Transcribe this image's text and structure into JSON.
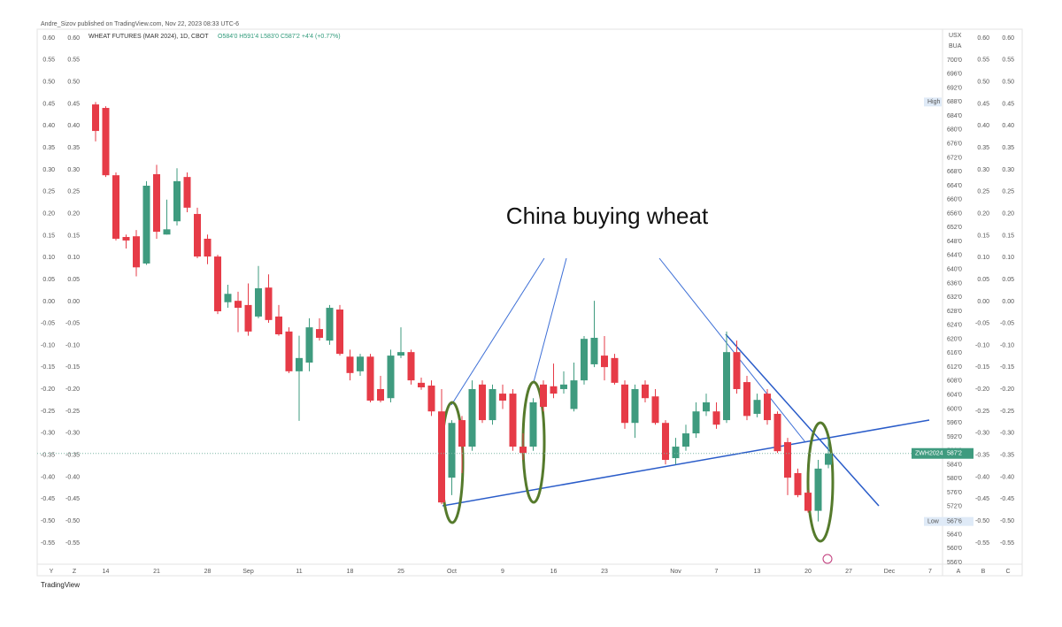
{
  "chart_data": {
    "type": "candlestick",
    "publisher": "Andre_Sizov published on TradingView.com, Nov 22, 2023 08:33 UTC-6",
    "title": "WHEAT FUTURES (MAR 2024), 1D, CBOT",
    "ohlc_text": "O584'0 H591'4 L583'0 C587'2 +4'4 (+0.77%)",
    "annotation": "China buying wheat",
    "currency": "USX",
    "unit": "BUA",
    "symbol": "ZWH2024",
    "last_price_label": "587'2",
    "high_label": "High",
    "low_label": "Low",
    "low_price_label": "567'6",
    "footer": "TradingView",
    "left_buttons": [
      "Y",
      "Z"
    ],
    "right_buttons": [
      "A",
      "B",
      "C"
    ],
    "up_color": "#3f9b7f",
    "down_color": "#e63b47",
    "categories": [
      null,
      "14",
      null,
      null,
      null,
      null,
      "21",
      null,
      null,
      null,
      null,
      "28",
      null,
      null,
      null,
      "Sep",
      null,
      null,
      null,
      null,
      "11",
      null,
      null,
      null,
      null,
      "18",
      null,
      null,
      null,
      null,
      "25",
      null,
      null,
      null,
      null,
      "Oct",
      null,
      null,
      null,
      null,
      "9",
      null,
      null,
      null,
      null,
      "16",
      null,
      null,
      null,
      null,
      "23",
      null,
      null,
      null,
      null,
      null,
      null,
      "Nov",
      null,
      null,
      null,
      "7",
      null,
      null,
      null,
      "13",
      null,
      null,
      null,
      null,
      "20",
      null,
      null,
      null,
      "27",
      null,
      null,
      null,
      "Dec",
      null,
      null,
      null,
      "7"
    ],
    "open": [
      687.3,
      686.3,
      667,
      649.3,
      649.5,
      641.7,
      667.3,
      650,
      653.8,
      666.5,
      655.9,
      648.8,
      643.7,
      630.6,
      631,
      629.8,
      626.5,
      634.8,
      626.5,
      622.2,
      610.8,
      613.3,
      622.9,
      619.6,
      628.5,
      615,
      610.8,
      615,
      605.7,
      603.1,
      615.3,
      616.3,
      607.5,
      606.7,
      599.3,
      580.3,
      596.8,
      589.2,
      607,
      596.8,
      604.4,
      604.4,
      589.2,
      589.2,
      607,
      606.5,
      605.7,
      600,
      608.2,
      612.8,
      615.3,
      614.6,
      607,
      596,
      607,
      603.6,
      596,
      585.9,
      589.2,
      593,
      599.3,
      599.3,
      596.8,
      616.3,
      607.7,
      598.6,
      604.4,
      598.6,
      590.5,
      581.6,
      576,
      570.8,
      584,
      null,
      null,
      null,
      null,
      null,
      null,
      null,
      null,
      null,
      null
    ],
    "high": [
      688,
      686.8,
      667.8,
      650,
      651.3,
      665.3,
      670,
      660,
      669,
      667.8,
      657.7,
      650,
      644.2,
      635.6,
      633.6,
      636,
      641,
      638.6,
      629.8,
      623.4,
      621,
      626,
      626,
      629.8,
      629.8,
      617,
      615.8,
      615.8,
      609.5,
      617,
      623.4,
      617,
      609,
      608.2,
      605.7,
      596.8,
      598,
      608.2,
      608.2,
      607,
      607,
      605.7,
      593,
      603.1,
      608.2,
      613,
      610.8,
      613.3,
      620.9,
      631,
      620.9,
      615.8,
      608.2,
      607,
      608.2,
      605.7,
      596.8,
      591.7,
      595.5,
      601.9,
      604.4,
      601.9,
      622.2,
      619.6,
      609.5,
      604.4,
      605.7,
      599.3,
      591.7,
      582.9,
      576.8,
      585.4,
      591.5,
      null,
      null,
      null,
      null,
      null,
      null,
      null,
      null,
      null,
      null
    ],
    "low": [
      676.7,
      666.5,
      648.3,
      646,
      638,
      641.3,
      648.8,
      650,
      652.6,
      656.4,
      643.2,
      641.5,
      627.2,
      629,
      622,
      621,
      626,
      624.7,
      621,
      610.3,
      596.6,
      610.8,
      619.6,
      618.4,
      615.3,
      608.2,
      609.5,
      601.9,
      601.9,
      601.9,
      614.6,
      607,
      605.5,
      598,
      572.7,
      575.3,
      581.6,
      588,
      596,
      595.5,
      600,
      588,
      585.4,
      588,
      599.3,
      603.1,
      604.4,
      599.3,
      607,
      612,
      608.2,
      607,
      594.3,
      591.7,
      601.9,
      595.5,
      584.1,
      584.1,
      588,
      591.7,
      598,
      594.3,
      596,
      604.4,
      596.8,
      597.6,
      595.5,
      587.4,
      575.3,
      574.7,
      570.3,
      567.75,
      583,
      null,
      null,
      null,
      null,
      null,
      null,
      null,
      null,
      null,
      null
    ],
    "close": [
      679.7,
      667,
      648.8,
      648.3,
      640.6,
      664,
      650.8,
      651.5,
      665.3,
      657.7,
      643.7,
      643.7,
      628,
      633,
      629,
      622.2,
      634.6,
      625.5,
      621.4,
      610.8,
      614.6,
      623.4,
      620.4,
      629,
      615.8,
      610.3,
      615,
      602.4,
      602.4,
      615.3,
      616.3,
      608.2,
      606.2,
      599.3,
      573.2,
      596,
      589.2,
      605.7,
      596.8,
      605.7,
      602.4,
      589.2,
      587.4,
      601.9,
      600.6,
      604.4,
      607,
      608.2,
      620.1,
      620.4,
      612,
      607.5,
      596,
      605.7,
      603.1,
      596,
      585.4,
      589.2,
      593,
      599.3,
      601.9,
      595.5,
      616.3,
      605.7,
      598,
      602.6,
      596.8,
      587.9,
      580.3,
      575.3,
      570.8,
      582.9,
      587.25,
      null,
      null,
      null,
      null,
      null,
      null,
      null,
      null,
      null,
      null
    ],
    "ylim": [
      556,
      700
    ],
    "yticks": [
      {
        "value": 700,
        "label": "700'0"
      },
      {
        "value": 696,
        "label": "696'0"
      },
      {
        "value": 692,
        "label": "692'0"
      },
      {
        "value": 688,
        "label": "688'0"
      },
      {
        "value": 684,
        "label": "684'0"
      },
      {
        "value": 680,
        "label": "680'0"
      },
      {
        "value": 676,
        "label": "676'0"
      },
      {
        "value": 672,
        "label": "672'0"
      },
      {
        "value": 668,
        "label": "668'0"
      },
      {
        "value": 664,
        "label": "664'0"
      },
      {
        "value": 660,
        "label": "660'0"
      },
      {
        "value": 656,
        "label": "656'0"
      },
      {
        "value": 652,
        "label": "652'0"
      },
      {
        "value": 648,
        "label": "648'0"
      },
      {
        "value": 644,
        "label": "644'0"
      },
      {
        "value": 640,
        "label": "640'0"
      },
      {
        "value": 636,
        "label": "636'0"
      },
      {
        "value": 632,
        "label": "632'0"
      },
      {
        "value": 628,
        "label": "628'0"
      },
      {
        "value": 624,
        "label": "624'0"
      },
      {
        "value": 620,
        "label": "620'0"
      },
      {
        "value": 616,
        "label": "616'0"
      },
      {
        "value": 612,
        "label": "612'0"
      },
      {
        "value": 608,
        "label": "608'0"
      },
      {
        "value": 604,
        "label": "604'0"
      },
      {
        "value": 600,
        "label": "600'0"
      },
      {
        "value": 596,
        "label": "596'0"
      },
      {
        "value": 592,
        "label": "592'0"
      },
      {
        "value": 588,
        "label": "588'0"
      },
      {
        "value": 584,
        "label": "584'0"
      },
      {
        "value": 580,
        "label": "580'0"
      },
      {
        "value": 576,
        "label": "576'0"
      },
      {
        "value": 572,
        "label": "572'0"
      },
      {
        "value": 568,
        "label": "568'0"
      },
      {
        "value": 564,
        "label": "564'0"
      },
      {
        "value": 560,
        "label": "560'0"
      },
      {
        "value": 556,
        "label": "556'0"
      }
    ],
    "y2lim": [
      -0.55,
      0.6
    ],
    "y2ticks": [
      {
        "value": 0.6,
        "label": "0.60"
      },
      {
        "value": 0.55,
        "label": "0.55"
      },
      {
        "value": 0.5,
        "label": "0.50"
      },
      {
        "value": 0.45,
        "label": "0.45"
      },
      {
        "value": 0.4,
        "label": "0.40"
      },
      {
        "value": 0.35,
        "label": "0.35"
      },
      {
        "value": 0.3,
        "label": "0.30"
      },
      {
        "value": 0.25,
        "label": "0.25"
      },
      {
        "value": 0.2,
        "label": "0.20"
      },
      {
        "value": 0.15,
        "label": "0.15"
      },
      {
        "value": 0.1,
        "label": "0.10"
      },
      {
        "value": 0.05,
        "label": "0.05"
      },
      {
        "value": 0,
        "label": "0.00"
      },
      {
        "value": -0.05,
        "label": "-0.05"
      },
      {
        "value": -0.1,
        "label": "-0.10"
      },
      {
        "value": -0.15,
        "label": "-0.15"
      },
      {
        "value": -0.2,
        "label": "-0.20"
      },
      {
        "value": -0.25,
        "label": "-0.25"
      },
      {
        "value": -0.3,
        "label": "-0.30"
      },
      {
        "value": -0.35,
        "label": "-0.35"
      },
      {
        "value": -0.4,
        "label": "-0.40"
      },
      {
        "value": -0.45,
        "label": "-0.45"
      },
      {
        "value": -0.5,
        "label": "-0.50"
      },
      {
        "value": -0.55,
        "label": "-0.55"
      }
    ]
  }
}
